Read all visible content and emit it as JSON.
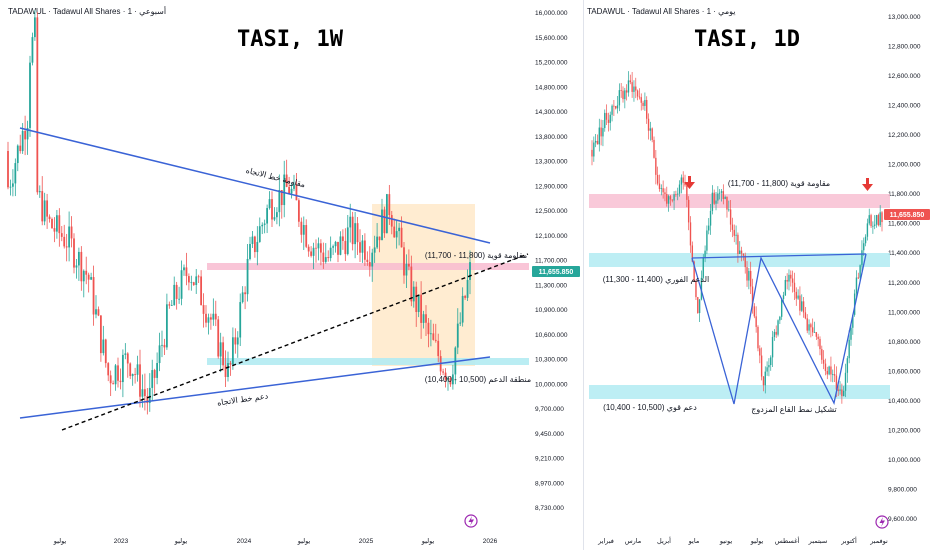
{
  "left": {
    "source": "TADAWUL · Tadawul All Shares · أسبوعي · 1",
    "title": "TASI, 1W",
    "last_price": "11,655.850",
    "last_price_color": "#26a69a",
    "yticks": [
      "16,000.000",
      "15,600.000",
      "15,200.000",
      "14,800.000",
      "14,300.000",
      "13,800.000",
      "13,300.000",
      "12,900.000",
      "12,500.000",
      "12,100.000",
      "11,700.000",
      "11,300.000",
      "10,900.000",
      "10,600.000",
      "10,300.000",
      "10,000.000",
      "9,700.000",
      "9,450.000",
      "9,210.000",
      "8,970.000",
      "8,730.000"
    ],
    "xticks": [
      "يوليو",
      "2023",
      "يوليو",
      "2024",
      "يوليو",
      "2025",
      "يوليو",
      "2026"
    ],
    "annotations": {
      "trend_resistance": "مقاومة خط الاتجاه",
      "strong_resistance": "مقاومة قوية (11,800 - 11,700)",
      "support_zone": "منطقة الدعم (10,500 - 10,400)",
      "trend_support": "دعم خط الاتجاه"
    },
    "chart_data": {
      "type": "candlestick",
      "timeframe": "1W",
      "close_series": [
        {
          "date": "2022-05",
          "value": 13600
        },
        {
          "date": "2022-06",
          "value": 12800
        },
        {
          "date": "2022-07",
          "value": 12200
        },
        {
          "date": "2022-09",
          "value": 12000
        },
        {
          "date": "2022-10",
          "value": 11600
        },
        {
          "date": "2022-12",
          "value": 10500
        },
        {
          "date": "2023-01",
          "value": 10700
        },
        {
          "date": "2023-03",
          "value": 10200
        },
        {
          "date": "2023-05",
          "value": 11200
        },
        {
          "date": "2023-07",
          "value": 11700
        },
        {
          "date": "2023-09",
          "value": 11200
        },
        {
          "date": "2023-10",
          "value": 10500
        },
        {
          "date": "2023-12",
          "value": 11800
        },
        {
          "date": "2024-02",
          "value": 12400
        },
        {
          "date": "2024-03",
          "value": 12600
        },
        {
          "date": "2024-05",
          "value": 12000
        },
        {
          "date": "2024-07",
          "value": 11800
        },
        {
          "date": "2024-09",
          "value": 12100
        },
        {
          "date": "2024-11",
          "value": 11900
        },
        {
          "date": "2025-02",
          "value": 12400
        },
        {
          "date": "2025-04",
          "value": 11500
        },
        {
          "date": "2025-06",
          "value": 10900
        },
        {
          "date": "2025-08",
          "value": 10500
        },
        {
          "date": "2025-10",
          "value": 11655.85
        }
      ],
      "zones": [
        {
          "name": "resistance",
          "low": 11700,
          "high": 11800
        },
        {
          "name": "support",
          "low": 10400,
          "high": 10500
        }
      ]
    }
  },
  "right": {
    "source": "TADAWUL · Tadawul All Shares · يومي · 1",
    "title": "TASI, 1D",
    "last_price": "11,655.850",
    "last_price_color": "#ef5350",
    "yticks": [
      "13,000.000",
      "12,800.000",
      "12,600.000",
      "12,400.000",
      "12,200.000",
      "12,000.000",
      "11,800.000",
      "11,600.000",
      "11,400.000",
      "11,200.000",
      "11,000.000",
      "10,800.000",
      "10,600.000",
      "10,400.000",
      "10,200.000",
      "10,000.000",
      "9,800.000",
      "9,600.000"
    ],
    "xticks": [
      "فبراير",
      "مارس",
      "أبريل",
      "مايو",
      "يونيو",
      "يوليو",
      "أغسطس",
      "سبتمبر",
      "أكتوبر",
      "نوفمبر"
    ],
    "annotations": {
      "strong_resistance": "مقاومة قوية (11,800 - 11,700)",
      "immediate_support": "الدعم الفوري (11,400 - 11,300)",
      "strong_support": "دعم قوي (10,500 - 10,400)",
      "pattern": "تشكيل نمط القاع المزدوج"
    },
    "chart_data": {
      "type": "candlestick",
      "timeframe": "1D",
      "close_series": [
        {
          "date": "2025-01-10",
          "value": 12100
        },
        {
          "date": "2025-01-25",
          "value": 12300
        },
        {
          "date": "2025-02-05",
          "value": 12450
        },
        {
          "date": "2025-02-15",
          "value": 12550
        },
        {
          "date": "2025-02-28",
          "value": 12400
        },
        {
          "date": "2025-03-10",
          "value": 11900
        },
        {
          "date": "2025-03-25",
          "value": 11700
        },
        {
          "date": "2025-04-05",
          "value": 11950
        },
        {
          "date": "2025-04-10",
          "value": 11000
        },
        {
          "date": "2025-04-20",
          "value": 11750
        },
        {
          "date": "2025-04-28",
          "value": 11800
        },
        {
          "date": "2025-05-10",
          "value": 11450
        },
        {
          "date": "2025-05-25",
          "value": 11200
        },
        {
          "date": "2025-06-10",
          "value": 10500
        },
        {
          "date": "2025-06-25",
          "value": 10900
        },
        {
          "date": "2025-07-10",
          "value": 11300
        },
        {
          "date": "2025-07-25",
          "value": 11000
        },
        {
          "date": "2025-08-10",
          "value": 10800
        },
        {
          "date": "2025-08-25",
          "value": 10600
        },
        {
          "date": "2025-09-10",
          "value": 10450
        },
        {
          "date": "2025-09-25",
          "value": 11200
        },
        {
          "date": "2025-10-10",
          "value": 11600
        },
        {
          "date": "2025-10-25",
          "value": 11655.85
        }
      ],
      "zones": [
        {
          "name": "strong_resistance",
          "low": 11700,
          "high": 11800
        },
        {
          "name": "immediate_support",
          "low": 11300,
          "high": 11400
        },
        {
          "name": "strong_support",
          "low": 10400,
          "high": 10500
        }
      ]
    }
  }
}
